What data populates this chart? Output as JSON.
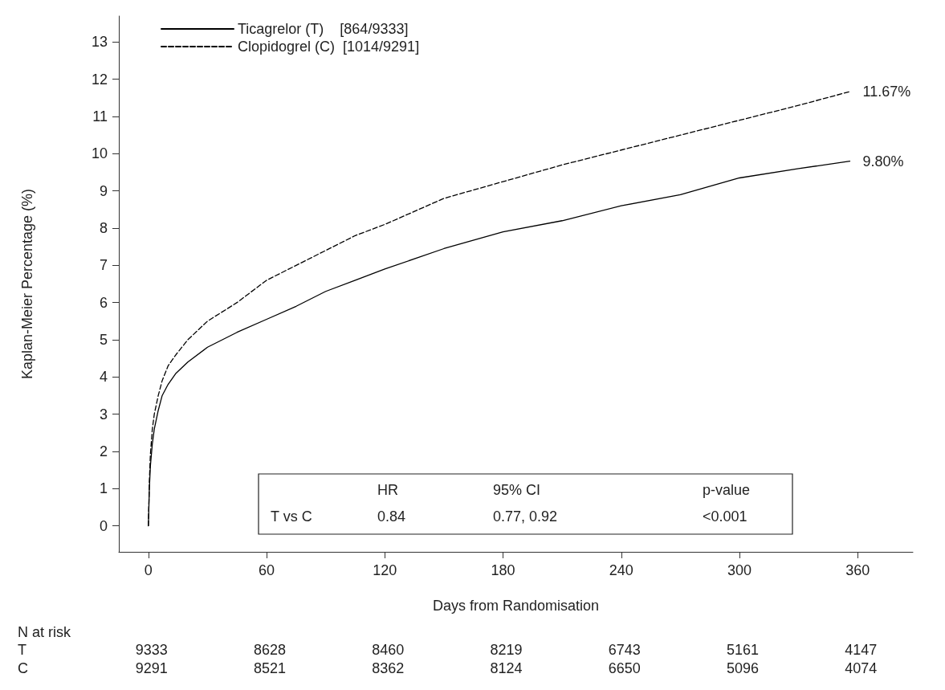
{
  "chart_data": {
    "type": "line",
    "xlabel": "Days from Randomisation",
    "ylabel": "Kaplan-Meier Percentage (%)",
    "xlim": [
      -15,
      388
    ],
    "xticks": [
      0,
      60,
      120,
      180,
      240,
      300,
      360
    ],
    "ylim": [
      -0.7,
      13.7
    ],
    "yticks": [
      0,
      1,
      2,
      3,
      4,
      5,
      6,
      7,
      8,
      9,
      10,
      11,
      12,
      13
    ],
    "grid": false,
    "legend": "top left",
    "marker": "none",
    "series": [
      {
        "name": "Ticagrelor (T)    [864/9333]",
        "color": "#000000",
        "line_style": "solid",
        "x": [
          0,
          0.5,
          1,
          2,
          3,
          5,
          7,
          10,
          14,
          20,
          30,
          45,
          60,
          75,
          90,
          105,
          120,
          150,
          180,
          210,
          240,
          270,
          300,
          330,
          356
        ],
        "values": [
          0,
          1.0,
          1.6,
          2.2,
          2.6,
          3.1,
          3.5,
          3.8,
          4.1,
          4.4,
          4.8,
          5.2,
          5.55,
          5.9,
          6.3,
          6.6,
          6.9,
          7.45,
          7.9,
          8.2,
          8.6,
          8.9,
          9.35,
          9.6,
          9.8
        ]
      },
      {
        "name": "Clopidogrel (C)  [1014/9291]",
        "color": "#000000",
        "line_style": "dashed",
        "x": [
          0,
          0.5,
          1,
          2,
          3,
          5,
          7,
          10,
          14,
          20,
          30,
          45,
          60,
          75,
          90,
          105,
          120,
          150,
          180,
          210,
          240,
          270,
          300,
          330,
          356
        ],
        "values": [
          0,
          1.2,
          1.9,
          2.6,
          3.0,
          3.5,
          3.9,
          4.3,
          4.6,
          5.0,
          5.5,
          6.0,
          6.6,
          7.0,
          7.4,
          7.8,
          8.1,
          8.8,
          9.25,
          9.7,
          10.1,
          10.5,
          10.9,
          11.3,
          11.67
        ]
      }
    ],
    "annotations": [
      {
        "text": "11.67%",
        "x": 356,
        "y": 11.67
      },
      {
        "text": "9.80%",
        "x": 356,
        "y": 9.8
      },
      "HR",
      "95% CI",
      "p-value",
      "T vs C",
      "0.84",
      "0.77, 0.92",
      "<0.001",
      "N at risk",
      "T",
      "C",
      "9333",
      "8628",
      "8460",
      "8219",
      "6743",
      "5161",
      "4147",
      "9291",
      "8521",
      "8362",
      "8124",
      "6650",
      "5096",
      "4074"
    ]
  }
}
